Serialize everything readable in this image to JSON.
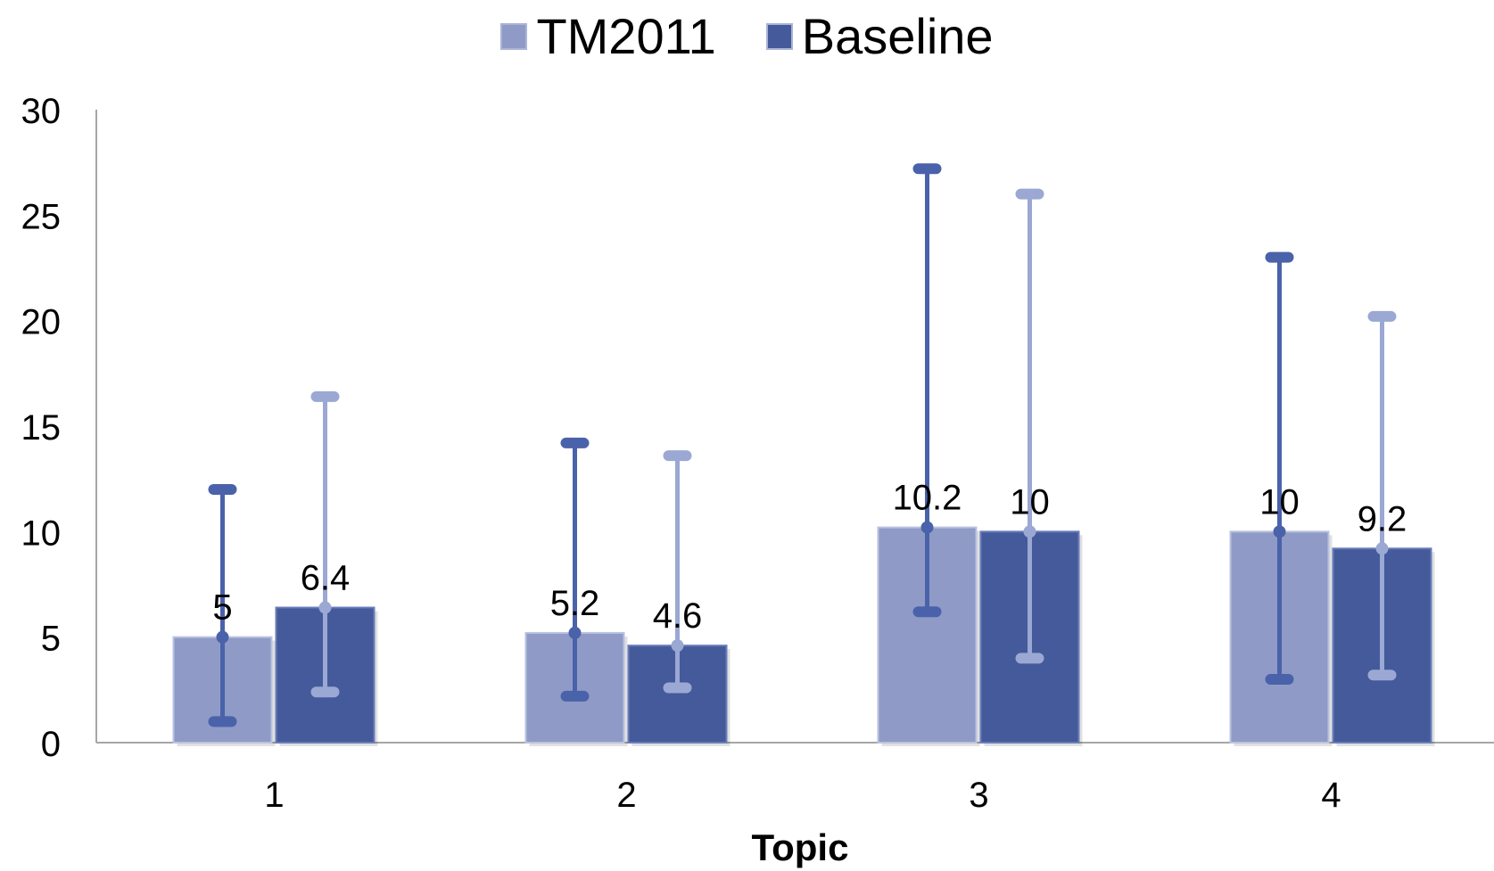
{
  "chart_data": {
    "type": "bar",
    "title": "",
    "xlabel": "Topic",
    "ylabel": "",
    "ylim": [
      0,
      30
    ],
    "yticks": [
      0,
      5,
      10,
      15,
      20,
      25,
      30
    ],
    "categories": [
      "1",
      "2",
      "3",
      "4"
    ],
    "series": [
      {
        "name": "TM2011",
        "color": "#8f9bc6",
        "values": [
          5,
          5.2,
          10.2,
          10
        ],
        "error_low": [
          1,
          2.2,
          6.2,
          3
        ],
        "error_high": [
          12,
          14.2,
          27.2,
          23
        ]
      },
      {
        "name": "Baseline",
        "color": "#445a9b",
        "values": [
          6.4,
          4.6,
          10,
          9.2
        ],
        "error_low": [
          2.4,
          2.6,
          4,
          3.2
        ],
        "error_high": [
          16.4,
          13.6,
          26,
          20.2
        ]
      }
    ],
    "grid": false,
    "legend": "top-center"
  }
}
